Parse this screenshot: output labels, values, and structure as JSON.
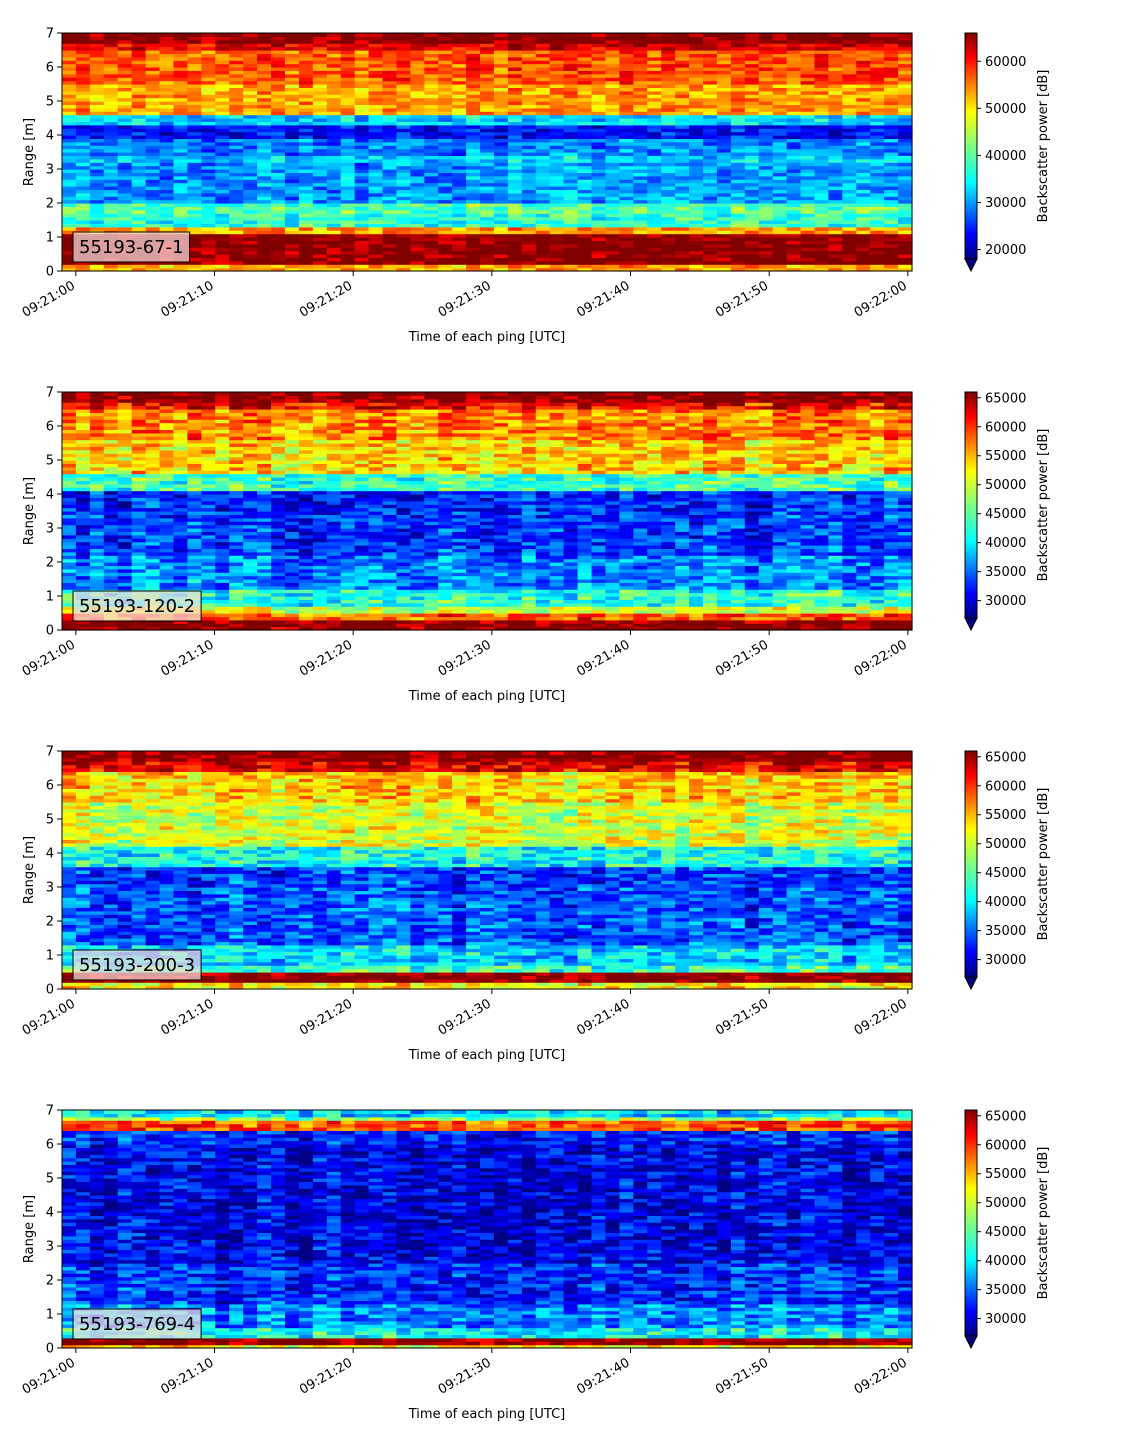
{
  "chart_data": [
    {
      "type": "heatmap",
      "panel_label": "55193-67-1",
      "xlabel": "Time of each ping [UTC]",
      "ylabel": "Range [m]",
      "x_ticks": [
        "09:21:00",
        "09:21:10",
        "09:21:20",
        "09:21:30",
        "09:21:40",
        "09:21:50",
        "09:22:00"
      ],
      "y_ticks": [
        "0",
        "1",
        "2",
        "3",
        "4",
        "5",
        "6",
        "7"
      ],
      "xlim_seconds": [
        -1,
        60.3
      ],
      "ylim": [
        0,
        7
      ],
      "colorbar": {
        "label": "Backscatter power [dB]",
        "min": 18000,
        "max": 66000,
        "ticks": [
          "20000",
          "30000",
          "40000",
          "50000",
          "60000"
        ],
        "extend": "min",
        "colormap": "jet"
      },
      "profile": [
        {
          "r0": 0.0,
          "r1": 0.25,
          "v": 52000
        },
        {
          "r0": 0.25,
          "r1": 1.1,
          "v": 66000
        },
        {
          "r0": 1.1,
          "r1": 1.3,
          "v": 52000
        },
        {
          "r0": 1.3,
          "r1": 1.7,
          "v": 38000
        },
        {
          "r0": 1.7,
          "r1": 2.0,
          "v": 40000
        },
        {
          "r0": 2.0,
          "r1": 3.2,
          "v": 31000
        },
        {
          "r0": 3.2,
          "r1": 3.4,
          "v": 34000
        },
        {
          "r0": 3.4,
          "r1": 3.9,
          "v": 30000
        },
        {
          "r0": 3.9,
          "r1": 4.3,
          "v": 24000
        },
        {
          "r0": 4.3,
          "r1": 4.6,
          "v": 34000
        },
        {
          "r0": 4.6,
          "r1": 5.5,
          "v": 52000
        },
        {
          "r0": 5.5,
          "r1": 6.5,
          "v": 56000
        },
        {
          "r0": 6.5,
          "r1": 6.75,
          "v": 61000
        },
        {
          "r0": 6.75,
          "r1": 7.0,
          "v": 66000
        }
      ]
    },
    {
      "type": "heatmap",
      "panel_label": "55193-120-2",
      "xlabel": "Time of each ping [UTC]",
      "ylabel": "Range [m]",
      "x_ticks": [
        "09:21:00",
        "09:21:10",
        "09:21:20",
        "09:21:30",
        "09:21:40",
        "09:21:50",
        "09:22:00"
      ],
      "y_ticks": [
        "0",
        "1",
        "2",
        "3",
        "4",
        "5",
        "6",
        "7"
      ],
      "xlim_seconds": [
        -1,
        60.3
      ],
      "ylim": [
        0,
        7
      ],
      "colorbar": {
        "label": "Backscatter power [dB]",
        "min": 27000,
        "max": 66000,
        "ticks": [
          "30000",
          "35000",
          "40000",
          "45000",
          "50000",
          "55000",
          "60000",
          "65000"
        ],
        "extend": "min",
        "colormap": "jet"
      },
      "profile": [
        {
          "r0": 0.0,
          "r1": 0.3,
          "v": 66000
        },
        {
          "r0": 0.3,
          "r1": 0.55,
          "v": 58000
        },
        {
          "r0": 0.55,
          "r1": 0.7,
          "v": 50000
        },
        {
          "r0": 0.7,
          "r1": 1.2,
          "v": 43000
        },
        {
          "r0": 1.2,
          "r1": 2.2,
          "v": 37000
        },
        {
          "r0": 2.2,
          "r1": 3.5,
          "v": 34000
        },
        {
          "r0": 3.5,
          "r1": 4.1,
          "v": 33000
        },
        {
          "r0": 4.1,
          "r1": 4.6,
          "v": 44000
        },
        {
          "r0": 4.6,
          "r1": 5.6,
          "v": 53000
        },
        {
          "r0": 5.6,
          "r1": 6.5,
          "v": 56000
        },
        {
          "r0": 6.5,
          "r1": 6.75,
          "v": 61000
        },
        {
          "r0": 6.75,
          "r1": 7.0,
          "v": 66000
        }
      ]
    },
    {
      "type": "heatmap",
      "panel_label": "55193-200-3",
      "xlabel": "Time of each ping [UTC]",
      "ylabel": "Range [m]",
      "x_ticks": [
        "09:21:00",
        "09:21:10",
        "09:21:20",
        "09:21:30",
        "09:21:40",
        "09:21:50",
        "09:22:00"
      ],
      "y_ticks": [
        "0",
        "1",
        "2",
        "3",
        "4",
        "5",
        "6",
        "7"
      ],
      "xlim_seconds": [
        -1,
        60.3
      ],
      "ylim": [
        0,
        7
      ],
      "colorbar": {
        "label": "Backscatter power [dB]",
        "min": 27000,
        "max": 66000,
        "ticks": [
          "30000",
          "35000",
          "40000",
          "45000",
          "50000",
          "55000",
          "60000",
          "65000"
        ],
        "extend": "min",
        "colormap": "jet"
      },
      "profile": [
        {
          "r0": 0.0,
          "r1": 0.2,
          "v": 52000
        },
        {
          "r0": 0.2,
          "r1": 0.45,
          "v": 66000
        },
        {
          "r0": 0.45,
          "r1": 0.7,
          "v": 44000
        },
        {
          "r0": 0.7,
          "r1": 1.3,
          "v": 40000
        },
        {
          "r0": 1.3,
          "r1": 3.0,
          "v": 35000
        },
        {
          "r0": 3.0,
          "r1": 3.6,
          "v": 34000
        },
        {
          "r0": 3.6,
          "r1": 4.2,
          "v": 42000
        },
        {
          "r0": 4.2,
          "r1": 5.5,
          "v": 50000
        },
        {
          "r0": 5.5,
          "r1": 6.4,
          "v": 53000
        },
        {
          "r0": 6.4,
          "r1": 6.7,
          "v": 62000
        },
        {
          "r0": 6.7,
          "r1": 7.0,
          "v": 66000
        }
      ]
    },
    {
      "type": "heatmap",
      "panel_label": "55193-769-4",
      "xlabel": "Time of each ping [UTC]",
      "ylabel": "Range [m]",
      "x_ticks": [
        "09:21:00",
        "09:21:10",
        "09:21:20",
        "09:21:30",
        "09:21:40",
        "09:21:50",
        "09:22:00"
      ],
      "y_ticks": [
        "0",
        "1",
        "2",
        "3",
        "4",
        "5",
        "6",
        "7"
      ],
      "xlim_seconds": [
        -1,
        60.3
      ],
      "ylim": [
        0,
        7
      ],
      "colorbar": {
        "label": "Backscatter power [dB]",
        "min": 27000,
        "max": 66000,
        "ticks": [
          "30000",
          "35000",
          "40000",
          "45000",
          "50000",
          "55000",
          "60000",
          "65000"
        ],
        "extend": "min",
        "colormap": "jet"
      },
      "profile": [
        {
          "r0": 0.0,
          "r1": 0.15,
          "v": 52000
        },
        {
          "r0": 0.15,
          "r1": 0.35,
          "v": 66000
        },
        {
          "r0": 0.35,
          "r1": 0.6,
          "v": 42000
        },
        {
          "r0": 0.6,
          "r1": 1.3,
          "v": 37000
        },
        {
          "r0": 1.3,
          "r1": 2.5,
          "v": 33500
        },
        {
          "r0": 2.5,
          "r1": 6.0,
          "v": 31000
        },
        {
          "r0": 6.0,
          "r1": 6.4,
          "v": 33000
        },
        {
          "r0": 6.4,
          "r1": 6.65,
          "v": 58000
        },
        {
          "r0": 6.65,
          "r1": 6.85,
          "v": 47000
        },
        {
          "r0": 6.85,
          "r1": 7.0,
          "v": 40000
        }
      ]
    }
  ]
}
